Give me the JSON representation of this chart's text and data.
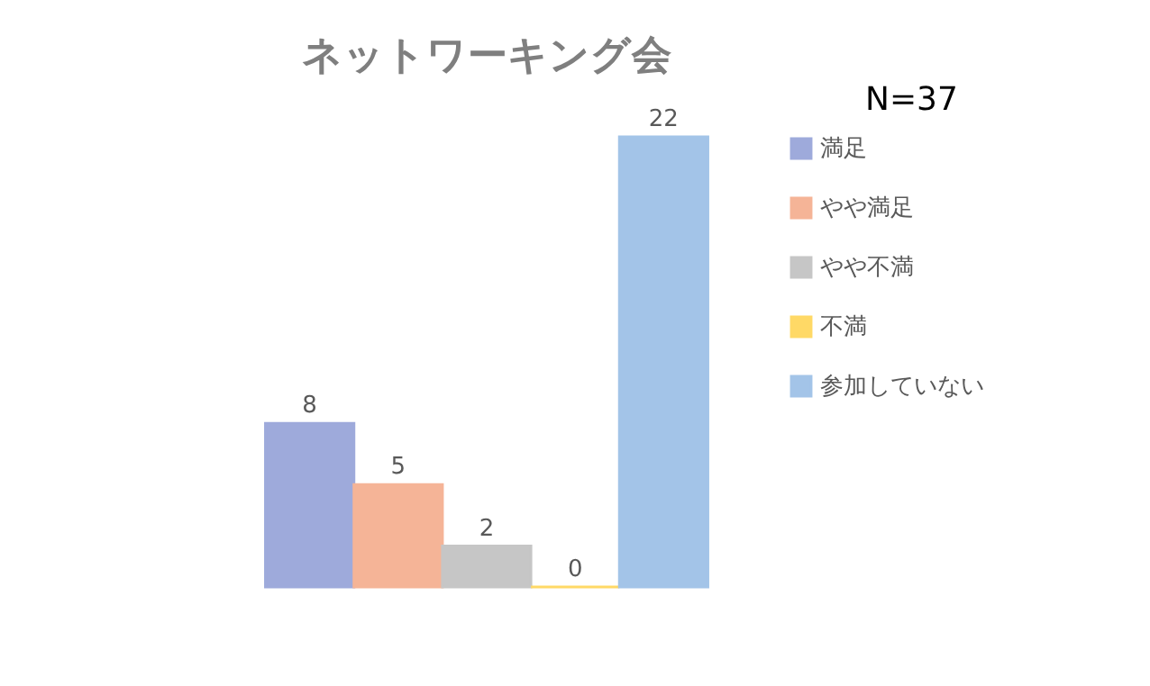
{
  "chart_data": {
    "type": "bar",
    "title": "ネットワーキング会",
    "categories": [
      null
    ],
    "series": [
      {
        "name": "満足",
        "color": "#9eaadb",
        "values": [
          8
        ]
      },
      {
        "name": "やや満足",
        "color": "#f5b497",
        "values": [
          5
        ]
      },
      {
        "name": "やや不満",
        "color": "#c6c6c6",
        "values": [
          2
        ]
      },
      {
        "name": "不満",
        "color": "#ffd966",
        "values": [
          0
        ]
      },
      {
        "name": "参加していない",
        "color": "#a3c4e8",
        "values": [
          22
        ]
      }
    ],
    "data_labels": true,
    "annotations": [
      "N=37"
    ],
    "legend": "right",
    "tick_labels": false,
    "grid": false
  }
}
